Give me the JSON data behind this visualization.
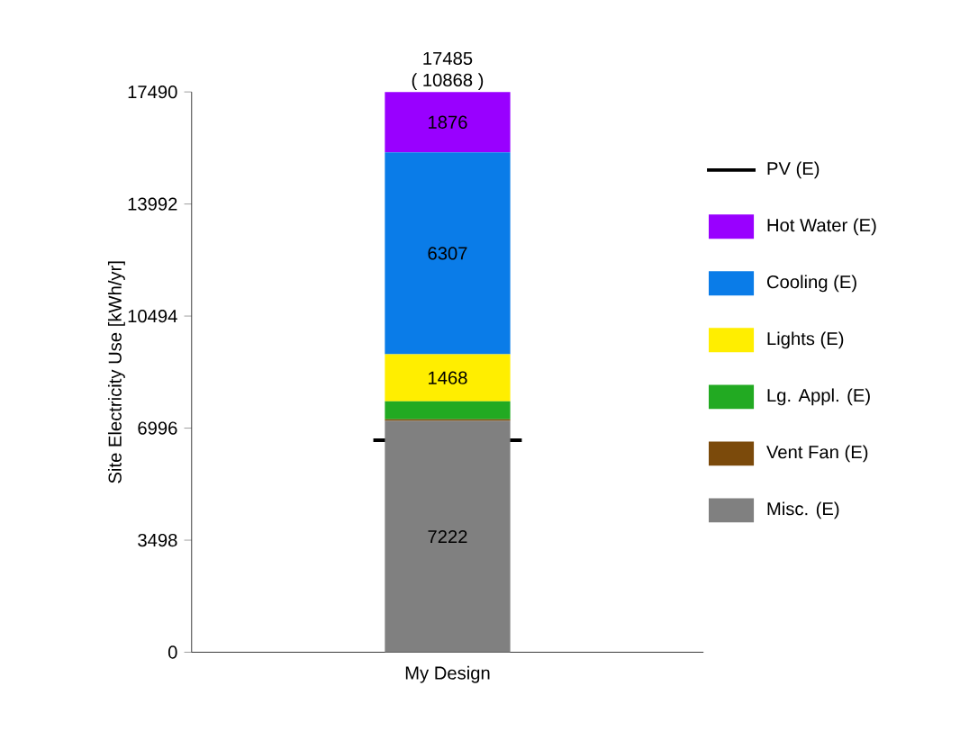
{
  "chart_data": {
    "type": "bar",
    "stacked": true,
    "ylabel": "Site Electricity Use [kWh/yr]",
    "categories": [
      "My Design"
    ],
    "series": [
      {
        "name": "Misc. (E)",
        "color": "#808080",
        "values": [
          7222
        ],
        "value_labels": [
          "7222"
        ]
      },
      {
        "name": "Vent Fan (E)",
        "color": "#7b4a0b",
        "values": [
          50
        ],
        "value_labels": [
          null
        ]
      },
      {
        "name": "Lg. Appl. (E)",
        "color": "#22aa22",
        "values": [
          560
        ],
        "value_labels": [
          null
        ]
      },
      {
        "name": "Lights (E)",
        "color": "#ffee00",
        "values": [
          1468
        ],
        "value_labels": [
          "1468"
        ]
      },
      {
        "name": "Cooling (E)",
        "color": "#0a7ce8",
        "values": [
          6307
        ],
        "value_labels": [
          "6307"
        ]
      },
      {
        "name": "Hot Water (E)",
        "color": "#9900ff",
        "values": [
          1876
        ],
        "value_labels": [
          "1876"
        ]
      }
    ],
    "ref_lines": [
      {
        "axis": "y",
        "value": 6617,
        "label": "PV (E)",
        "color": "#000000"
      }
    ],
    "totals": [
      "17485"
    ],
    "annotations": [
      "( 10868 )"
    ],
    "ylim": [
      0,
      17490
    ],
    "yticks": [
      0,
      3498,
      6996,
      10494,
      13992,
      17490
    ],
    "legend": "right"
  }
}
